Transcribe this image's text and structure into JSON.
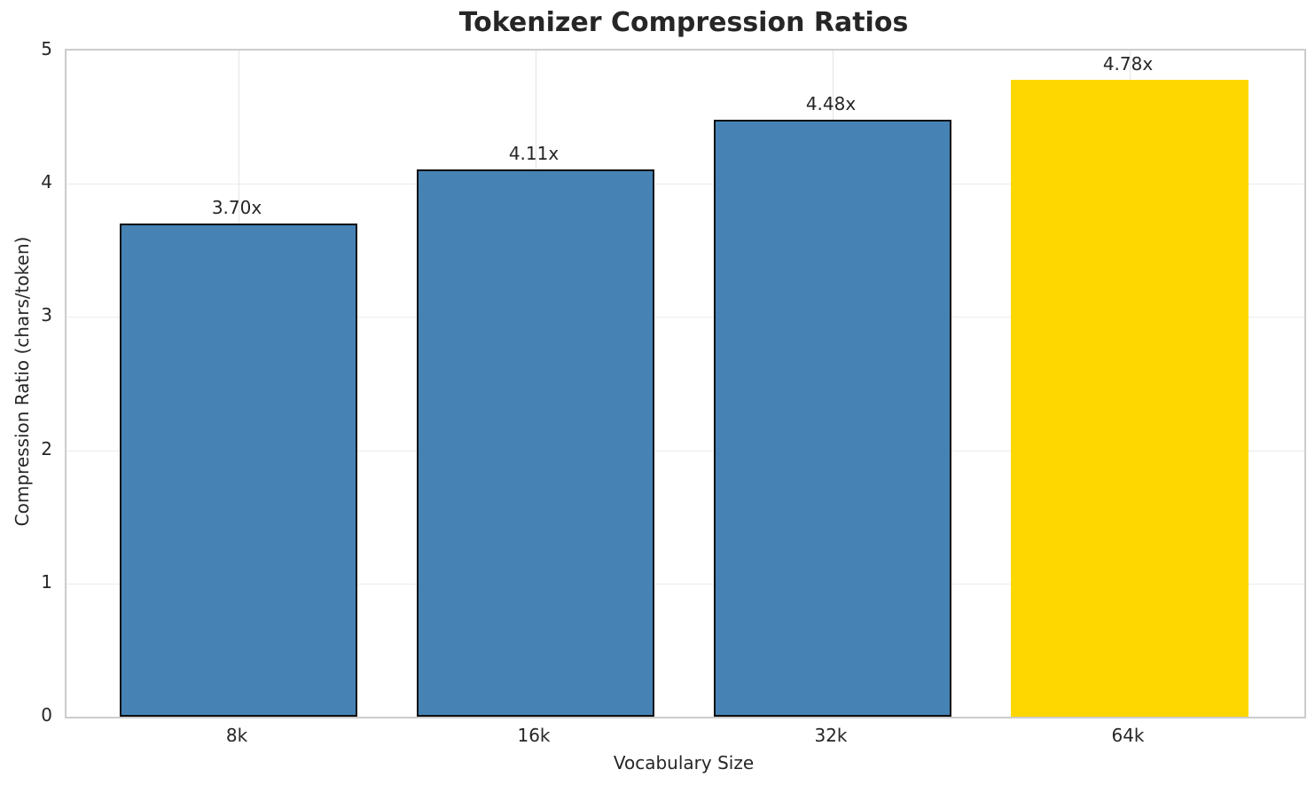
{
  "chart_data": {
    "type": "bar",
    "title": "Tokenizer Compression Ratios",
    "xlabel": "Vocabulary Size",
    "ylabel": "Compression Ratio (chars/token)",
    "categories": [
      "8k",
      "16k",
      "32k",
      "64k"
    ],
    "values": [
      3.7,
      4.11,
      4.48,
      4.78
    ],
    "bar_labels": [
      "3.70x",
      "4.11x",
      "4.48x",
      "4.78x"
    ],
    "ylim": [
      0,
      5
    ],
    "yticks": [
      0,
      1,
      2,
      3,
      4,
      5
    ],
    "grid": true,
    "legend": false,
    "highlight_index": 3,
    "colors": {
      "bar": "#4682b4",
      "highlight": "#ffd700",
      "bar_edge": "#0d0d0d",
      "text": "#262626",
      "grid_h": "#ebebeb",
      "grid_v": "#e4e4e4",
      "spine": "#cccccc",
      "background": "#ffffff"
    }
  }
}
